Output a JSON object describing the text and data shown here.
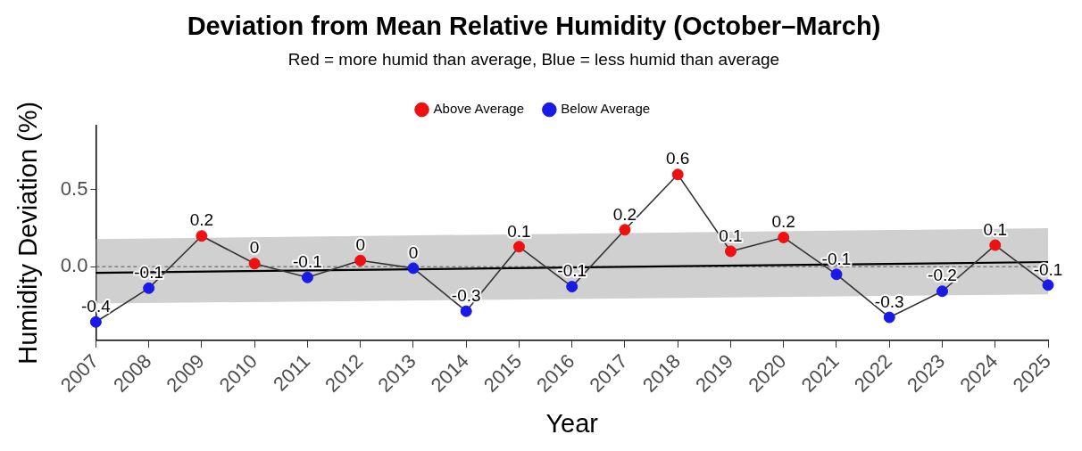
{
  "chart_data": {
    "type": "line",
    "title": "Deviation from Mean Relative Humidity (October–March)",
    "subtitle": "Red = more humid than average, Blue = less humid than average",
    "xlabel": "Year",
    "ylabel": "Humidity Deviation (%)",
    "categories": [
      "2007",
      "2008",
      "2009",
      "2010",
      "2011",
      "2012",
      "2013",
      "2014",
      "2015",
      "2016",
      "2017",
      "2018",
      "2019",
      "2020",
      "2021",
      "2022",
      "2023",
      "2024",
      "2025"
    ],
    "series": [
      {
        "type": "line",
        "color": "#333333",
        "marker": "none",
        "values": [
          -0.36,
          -0.14,
          0.2,
          0.02,
          -0.07,
          0.04,
          -0.01,
          -0.29,
          0.13,
          -0.13,
          0.24,
          0.6,
          0.1,
          0.19,
          -0.05,
          -0.33,
          -0.16,
          0.14,
          -0.12
        ],
        "value_labels": [
          "-0.4",
          "-0.1",
          "0.2",
          "0",
          "-0.1",
          "0",
          "0",
          "-0.3",
          "0.1",
          "-0.1",
          "0.2",
          "0.6",
          "0.1",
          "0.2",
          "-0.1",
          "-0.3",
          "-0.2",
          "0.1",
          "-0.1"
        ]
      },
      {
        "type": "scatter",
        "name": "Above Average",
        "color": "#ee1111",
        "marker": "circle",
        "values": [
          null,
          null,
          0.2,
          0.02,
          null,
          0.04,
          null,
          null,
          0.13,
          null,
          0.24,
          0.6,
          0.1,
          0.19,
          null,
          null,
          null,
          0.14,
          null
        ]
      },
      {
        "type": "scatter",
        "name": "Below Average",
        "color": "#1a1ae6",
        "marker": "circle",
        "values": [
          -0.36,
          -0.14,
          null,
          null,
          -0.07,
          null,
          -0.01,
          -0.29,
          null,
          -0.13,
          null,
          null,
          null,
          null,
          -0.05,
          -0.33,
          -0.16,
          null,
          -0.12
        ]
      },
      {
        "type": "line",
        "color": "#000000",
        "marker": "none",
        "values": [
          -0.04,
          null,
          null,
          null,
          null,
          null,
          null,
          null,
          null,
          null,
          null,
          null,
          null,
          null,
          null,
          null,
          null,
          null,
          0.03
        ],
        "lower": [
          -0.24,
          null,
          null,
          null,
          null,
          null,
          null,
          null,
          null,
          null,
          null,
          null,
          null,
          null,
          null,
          null,
          null,
          null,
          -0.18
        ],
        "upper": [
          0.18,
          null,
          null,
          null,
          null,
          null,
          null,
          null,
          null,
          null,
          null,
          null,
          null,
          null,
          null,
          null,
          null,
          null,
          0.25
        ]
      }
    ],
    "ylim": [
      -0.48,
      0.92
    ],
    "yticks": [
      {
        "value": 0,
        "label": "0.0"
      },
      0.5
    ],
    "grid": false,
    "legend": "top",
    "ref_lines": [
      {
        "axis": "y",
        "value": 0,
        "color": "#555555",
        "line_style": "dashed"
      }
    ]
  }
}
